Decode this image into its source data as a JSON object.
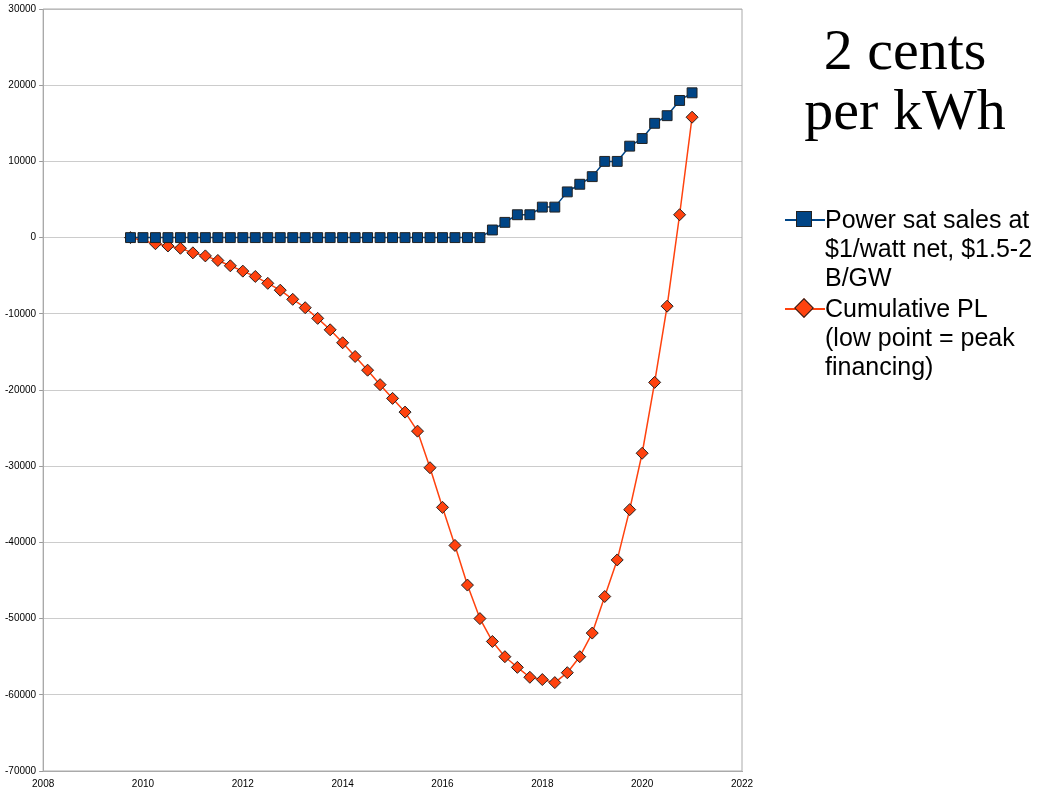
{
  "chart_data": {
    "type": "line",
    "title": "2 cents per kWh",
    "x": [
      2009.75,
      2010,
      2010.25,
      2010.5,
      2010.75,
      2011,
      2011.25,
      2011.5,
      2011.75,
      2012,
      2012.25,
      2012.5,
      2012.75,
      2013,
      2013.25,
      2013.5,
      2013.75,
      2014,
      2014.25,
      2014.5,
      2014.75,
      2015,
      2015.25,
      2015.5,
      2015.75,
      2016,
      2016.25,
      2016.5,
      2016.75,
      2017,
      2017.25,
      2017.5,
      2017.75,
      2018,
      2018.25,
      2018.5,
      2018.75,
      2019,
      2019.25,
      2019.5,
      2019.75,
      2020,
      2020.25,
      2020.5,
      2020.75,
      2021
    ],
    "series": [
      {
        "name": "Power sat sales at $1/watt net, $1.5-2 B/GW",
        "color": "#004586",
        "marker": "square",
        "values": [
          0,
          0,
          0,
          0,
          0,
          0,
          0,
          0,
          0,
          0,
          0,
          0,
          0,
          0,
          0,
          0,
          0,
          0,
          0,
          0,
          0,
          0,
          0,
          0,
          0,
          0,
          0,
          0,
          0,
          1000,
          2000,
          3000,
          3000,
          4000,
          4000,
          6000,
          7000,
          8000,
          10000,
          10000,
          12000,
          13000,
          15000,
          16000,
          18000,
          19000
        ]
      },
      {
        "name": "Cumulative PL (low point = peak financing)",
        "color": "#ff420e",
        "marker": "diamond",
        "values": [
          0,
          null,
          -800,
          -1100,
          -1400,
          -2000,
          -2400,
          -3000,
          -3700,
          -4400,
          -5100,
          -6000,
          -6900,
          -8100,
          -9200,
          -10600,
          -12100,
          -13800,
          -15600,
          -17400,
          -19300,
          -21100,
          -22900,
          -25400,
          -30200,
          -35400,
          -40400,
          -45600,
          -50000,
          -53000,
          -55000,
          -56400,
          -57700,
          -58000,
          -58400,
          -57100,
          -55000,
          -51900,
          -47100,
          -42300,
          -35700,
          -28300,
          -19000,
          -9000,
          3000,
          15800
        ]
      }
    ],
    "xlim": [
      2008,
      2022
    ],
    "xticks": [
      2008,
      2010,
      2012,
      2014,
      2016,
      2018,
      2020,
      2022
    ],
    "ylim": [
      -70000,
      30000
    ],
    "yticks": [
      -70000,
      -60000,
      -50000,
      -40000,
      -30000,
      -20000,
      -10000,
      0,
      10000,
      20000,
      30000
    ],
    "grid": "y",
    "legend": "right"
  }
}
